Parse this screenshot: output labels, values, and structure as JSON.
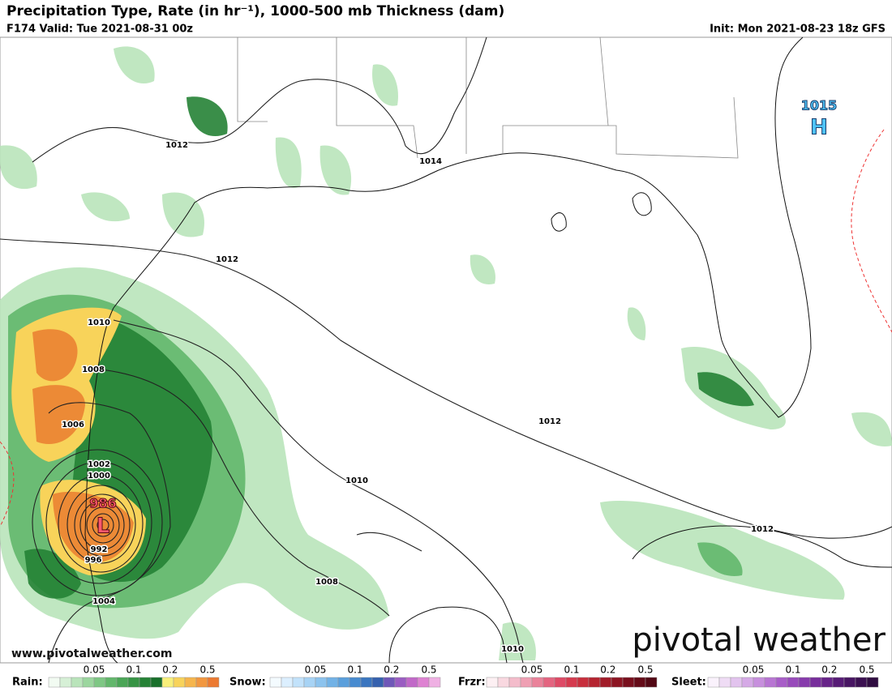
{
  "header": {
    "title": "Precipitation Type, Rate (in hr⁻¹), 1000-500 mb Thickness (dam)",
    "valid": "F174 Valid: Tue 2021-08-31 00z",
    "init": "Init: Mon 2021-08-23 18z GFS"
  },
  "map": {
    "isobar_labels": [
      "1012",
      "1014",
      "1012",
      "1010",
      "1008",
      "1006",
      "1002",
      "1000",
      "992",
      "996",
      "1004",
      "1012",
      "1010",
      "1008",
      "1010",
      "1012"
    ],
    "high": {
      "pressure": "1015",
      "symbol": "H"
    },
    "low": {
      "pressure": "986",
      "symbol": "L"
    }
  },
  "branding": {
    "logo": "pivotal weather",
    "url": "www.pivotalweather.com"
  },
  "legend": [
    {
      "label": "Rain:",
      "ticks": [
        0.05,
        0.1,
        0.2,
        0.5
      ],
      "colors": [
        "#f2fbf2",
        "#d6f0d6",
        "#b9e4ba",
        "#9bd69e",
        "#7ec784",
        "#62b76b",
        "#4aa656",
        "#369444",
        "#258235",
        "#18702a",
        "#f7ef7a",
        "#f8d35a",
        "#f6b54c",
        "#f2973f",
        "#ec7a31"
      ]
    },
    {
      "label": "Snow:",
      "ticks": [
        0.05,
        0.1,
        0.2,
        0.5
      ],
      "colors": [
        "#f4fbff",
        "#dcefff",
        "#c2e2fb",
        "#a7d3f5",
        "#8cc3ee",
        "#72b2e6",
        "#5a9fdc",
        "#478bd0",
        "#3a76c0",
        "#3561ae",
        "#6f57b8",
        "#9a5cc2",
        "#c168c8",
        "#de82d2",
        "#efb0e3"
      ]
    },
    {
      "label": "Frzr:",
      "ticks": [
        0.05,
        0.1,
        0.2,
        0.5
      ],
      "colors": [
        "#fdf0f3",
        "#f9d8e0",
        "#f4bccb",
        "#ef9fb3",
        "#ea829a",
        "#e46480",
        "#de4a66",
        "#d53a4e",
        "#c82e3c",
        "#b5232f",
        "#a11b28",
        "#8d1422",
        "#790f1d",
        "#650b18",
        "#520814"
      ]
    },
    {
      "label": "Sleet:",
      "ticks": [
        0.05,
        0.1,
        0.2,
        0.5
      ],
      "colors": [
        "#faf2fc",
        "#efdcf5",
        "#e2c3ee",
        "#d5a9e6",
        "#c78fdd",
        "#b875d3",
        "#a85dc8",
        "#984abb",
        "#873aac",
        "#772d9b",
        "#672389",
        "#571b76",
        "#481563",
        "#3b1051",
        "#2f0c40"
      ]
    }
  ]
}
